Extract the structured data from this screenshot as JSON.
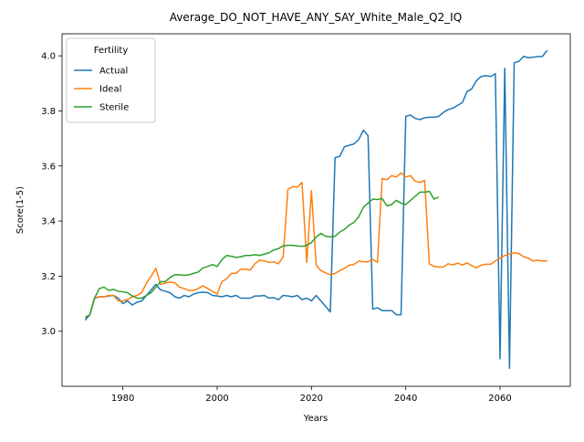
{
  "chart_data": {
    "type": "line",
    "title": "Average_DO_NOT_HAVE_ANY_SAY_White_Male_Q2_IQ",
    "x_label": "Years",
    "y_label": "Score(1-5)",
    "legend_title": "Fertility",
    "legend": "upper left",
    "grid": false,
    "x": [
      1972,
      1973,
      1974,
      1975,
      1976,
      1977,
      1978,
      1979,
      1980,
      1981,
      1982,
      1983,
      1984,
      1985,
      1986,
      1987,
      1988,
      1989,
      1990,
      1991,
      1992,
      1993,
      1994,
      1995,
      1996,
      1997,
      1998,
      1999,
      2000,
      2001,
      2002,
      2003,
      2004,
      2005,
      2006,
      2007,
      2008,
      2009,
      2010,
      2011,
      2012,
      2013,
      2014,
      2015,
      2016,
      2017,
      2018,
      2019,
      2020,
      2021,
      2022,
      2023,
      2024,
      2025,
      2026,
      2027,
      2028,
      2029,
      2030,
      2031,
      2032,
      2033,
      2034,
      2035,
      2036,
      2037,
      2038,
      2039,
      2040,
      2041,
      2042,
      2043,
      2044,
      2045,
      2046,
      2047,
      2048,
      2049,
      2050,
      2051,
      2052,
      2053,
      2054,
      2055,
      2056,
      2057,
      2058,
      2059,
      2060,
      2061,
      2062,
      2063,
      2064,
      2065,
      2066,
      2067,
      2068,
      2069,
      2070
    ],
    "series": [
      {
        "name": "Actual",
        "color": "#1f77b4",
        "values": [
          3.04,
          3.06,
          3.12,
          3.125,
          3.125,
          3.128,
          3.13,
          3.12,
          3.1,
          3.11,
          3.095,
          3.105,
          3.11,
          3.13,
          3.15,
          3.17,
          3.15,
          3.145,
          3.14,
          3.125,
          3.12,
          3.13,
          3.125,
          3.135,
          3.14,
          3.142,
          3.14,
          3.13,
          3.128,
          3.125,
          3.13,
          3.125,
          3.13,
          3.12,
          3.12,
          3.12,
          3.128,
          3.128,
          3.13,
          3.12,
          3.122,
          3.115,
          3.13,
          3.128,
          3.125,
          3.13,
          3.115,
          3.12,
          3.11,
          3.13,
          3.11,
          3.09,
          3.07,
          3.63,
          3.635,
          3.67,
          3.675,
          3.68,
          3.695,
          3.73,
          3.71,
          3.08,
          3.085,
          3.075,
          3.075,
          3.075,
          3.06,
          3.06,
          3.78,
          3.785,
          3.773,
          3.768,
          3.775,
          3.777,
          3.777,
          3.78,
          3.795,
          3.805,
          3.81,
          3.82,
          3.83,
          3.87,
          3.88,
          3.91,
          3.925,
          3.928,
          3.925,
          3.935,
          2.9,
          3.955,
          2.865,
          3.975,
          3.98,
          3.998,
          3.993,
          3.995,
          3.997,
          3.998,
          4.02
        ]
      },
      {
        "name": "Ideal",
        "color": "#ff7f0e",
        "values": [
          3.05,
          3.06,
          3.12,
          3.125,
          3.125,
          3.13,
          3.13,
          3.11,
          3.11,
          3.115,
          3.125,
          3.13,
          3.14,
          3.175,
          3.2,
          3.228,
          3.17,
          3.175,
          3.178,
          3.176,
          3.16,
          3.155,
          3.148,
          3.148,
          3.155,
          3.165,
          3.155,
          3.145,
          3.135,
          3.18,
          3.19,
          3.21,
          3.21,
          3.225,
          3.225,
          3.222,
          3.245,
          3.258,
          3.255,
          3.25,
          3.252,
          3.245,
          3.27,
          3.515,
          3.525,
          3.523,
          3.54,
          3.25,
          3.51,
          3.24,
          3.22,
          3.212,
          3.205,
          3.21,
          3.22,
          3.228,
          3.24,
          3.242,
          3.255,
          3.252,
          3.252,
          3.26,
          3.25,
          3.555,
          3.55,
          3.565,
          3.56,
          3.575,
          3.56,
          3.565,
          3.545,
          3.54,
          3.548,
          3.245,
          3.235,
          3.233,
          3.233,
          3.245,
          3.24,
          3.248,
          3.24,
          3.248,
          3.238,
          3.23,
          3.24,
          3.243,
          3.243,
          3.255,
          3.265,
          3.275,
          3.28,
          3.285,
          3.282,
          3.27,
          3.265,
          3.255,
          3.258,
          3.255,
          3.255
        ]
      },
      {
        "name": "Sterile",
        "color": "#2ca02c",
        "values": [
          3.05,
          3.06,
          3.12,
          3.155,
          3.16,
          3.148,
          3.152,
          3.145,
          3.143,
          3.14,
          3.128,
          3.12,
          3.12,
          3.13,
          3.14,
          3.16,
          3.18,
          3.18,
          3.195,
          3.205,
          3.205,
          3.203,
          3.205,
          3.21,
          3.215,
          3.23,
          3.235,
          3.242,
          3.235,
          3.26,
          3.275,
          3.272,
          3.268,
          3.27,
          3.275,
          3.275,
          3.278,
          3.275,
          3.28,
          3.285,
          3.295,
          3.3,
          3.31,
          3.312,
          3.312,
          3.31,
          3.308,
          3.312,
          3.322,
          3.342,
          3.355,
          3.345,
          3.342,
          3.345,
          3.36,
          3.37,
          3.385,
          3.395,
          3.415,
          3.45,
          3.465,
          3.48,
          3.478,
          3.482,
          3.455,
          3.46,
          3.475,
          3.465,
          3.46,
          3.475,
          3.49,
          3.505,
          3.505,
          3.508,
          3.48,
          3.487,
          null,
          null,
          null,
          null,
          null,
          null,
          null,
          null,
          null,
          null,
          null,
          null,
          null,
          null,
          null,
          null,
          null,
          null,
          null,
          null,
          null,
          null,
          null
        ]
      }
    ],
    "xlim": [
      1967.1,
      2074.9
    ],
    "xticks": [
      1980,
      2000,
      2020,
      2040,
      2060
    ],
    "ylim": [
      2.8,
      4.08
    ],
    "yticks": [
      {
        "value": 3,
        "label": "3.0"
      },
      3.2,
      3.4,
      3.6,
      3.8,
      {
        "value": 4,
        "label": "4.0"
      }
    ]
  }
}
